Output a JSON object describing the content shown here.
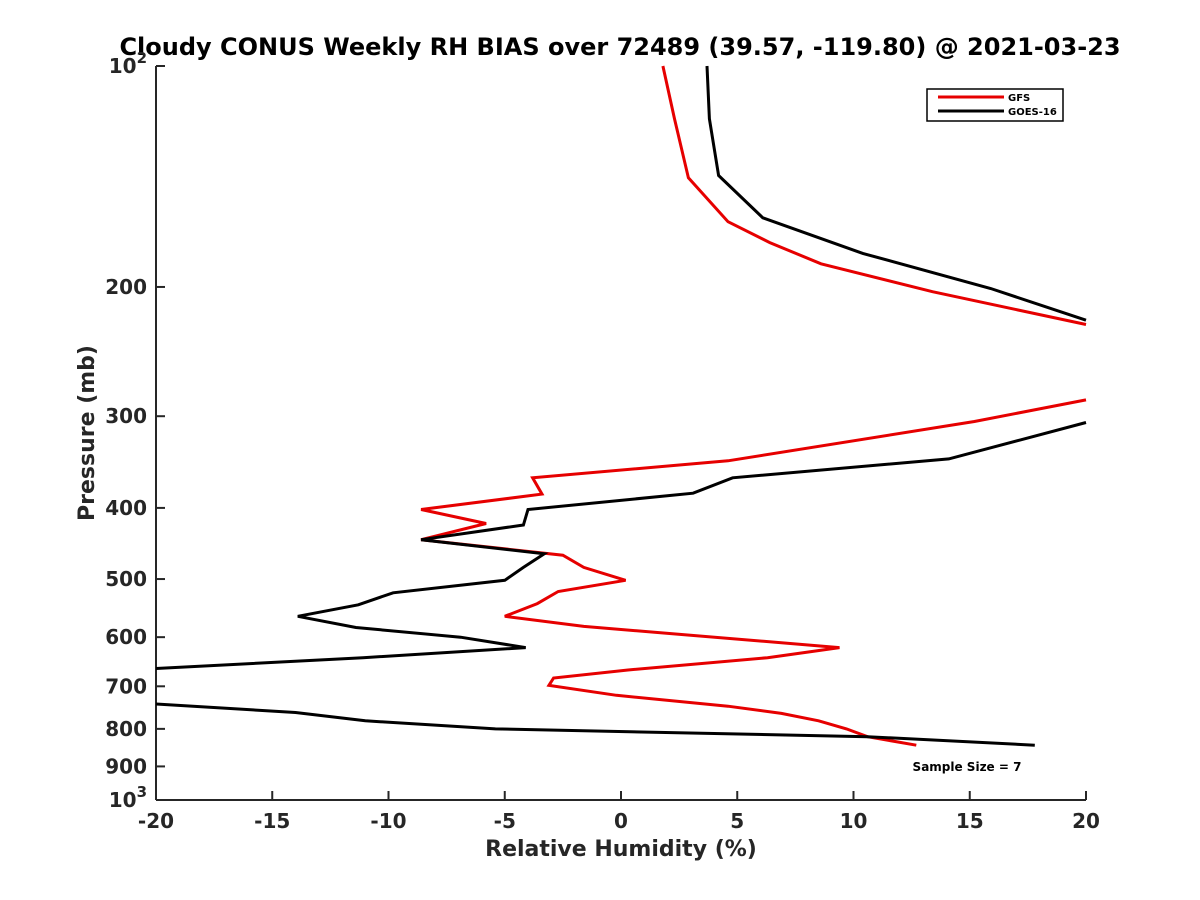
{
  "chart_data": {
    "type": "line",
    "title": "Cloudy CONUS Weekly RH BIAS over 72489 (39.57, -119.80) @ 2021-03-23",
    "xlabel": "Relative Humidity (%)",
    "ylabel": "Pressure (mb)",
    "xlim": [
      -20,
      20
    ],
    "ylim": [
      100,
      1000
    ],
    "y_scale": "log",
    "y_reversed": true,
    "grid": false,
    "legend_position": "top-right",
    "x_ticks": [
      "-20",
      "-15",
      "-10",
      "-5",
      "0",
      "5",
      "10",
      "15",
      "20"
    ],
    "y_ticks": [
      {
        "value": 100,
        "base": "10",
        "exp": "2"
      },
      {
        "value": 200,
        "label": "200"
      },
      {
        "value": 300,
        "label": "300"
      },
      {
        "value": 400,
        "label": "400"
      },
      {
        "value": 500,
        "label": "500"
      },
      {
        "value": 600,
        "label": "600"
      },
      {
        "value": 700,
        "label": "700"
      },
      {
        "value": 800,
        "label": "800"
      },
      {
        "value": 900,
        "label": "900"
      },
      {
        "value": 1000,
        "base": "10",
        "exp": "3"
      }
    ],
    "annotation": "Sample Size = 7",
    "series": [
      {
        "name": "GFS",
        "color": "#e60000",
        "segments": [
          [
            [
              1.8,
              100
            ],
            [
              2.3,
              118
            ],
            [
              2.9,
              142
            ],
            [
              4.6,
              163
            ],
            [
              6.4,
              174
            ],
            [
              8.6,
              186
            ],
            [
              13.4,
              203
            ],
            [
              20.0,
              225
            ]
          ],
          [
            [
              20.0,
              285
            ],
            [
              15.2,
              305
            ],
            [
              4.6,
              345
            ],
            [
              -3.8,
              364
            ],
            [
              -3.4,
              383
            ],
            [
              -8.6,
              402
            ],
            [
              -5.8,
              420
            ],
            [
              -8.6,
              442
            ],
            [
              -2.5,
              464
            ],
            [
              -1.6,
              482
            ],
            [
              0.2,
              502
            ],
            [
              -2.7,
              520
            ],
            [
              -3.6,
              540
            ],
            [
              -5.0,
              562
            ],
            [
              -1.6,
              580
            ],
            [
              9.4,
              620
            ],
            [
              6.3,
              640
            ],
            [
              0.3,
              665
            ],
            [
              -2.9,
              682
            ],
            [
              -3.1,
              698
            ],
            [
              -0.2,
              720
            ],
            [
              4.6,
              745
            ],
            [
              6.9,
              762
            ],
            [
              8.5,
              780
            ],
            [
              9.7,
              800
            ],
            [
              10.6,
              820
            ],
            [
              12.7,
              842
            ]
          ]
        ]
      },
      {
        "name": "GOES-16",
        "color": "#000000",
        "segments": [
          [
            [
              3.7,
              100
            ],
            [
              3.8,
              118
            ],
            [
              4.2,
              141
            ],
            [
              6.1,
              161
            ],
            [
              10.4,
              180
            ],
            [
              15.9,
              201
            ],
            [
              20.0,
              222
            ]
          ],
          [
            [
              20.0,
              306
            ],
            [
              17.2,
              323
            ],
            [
              14.1,
              343
            ],
            [
              4.8,
              364
            ],
            [
              3.1,
              382
            ],
            [
              -4.0,
              402
            ],
            [
              -4.2,
              422
            ],
            [
              -8.6,
              442
            ],
            [
              -3.3,
              462
            ],
            [
              -4.2,
              482
            ],
            [
              -5.0,
              502
            ],
            [
              -9.8,
              522
            ],
            [
              -11.3,
              542
            ],
            [
              -13.9,
              562
            ],
            [
              -11.4,
              582
            ],
            [
              -6.9,
              600
            ],
            [
              -4.1,
              620
            ],
            [
              -11.1,
              640
            ],
            [
              -20.0,
              662
            ]
          ],
          [
            [
              -20.0,
              740
            ],
            [
              -14.0,
              760
            ],
            [
              -11.0,
              780
            ],
            [
              -5.4,
              800
            ],
            [
              10.6,
              820
            ],
            [
              17.8,
              842
            ]
          ]
        ]
      }
    ]
  }
}
